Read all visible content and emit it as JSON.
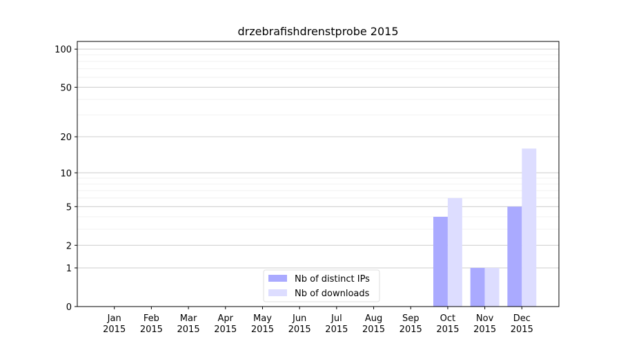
{
  "chart_data": {
    "type": "bar",
    "title": "drzebrafishdrenstprobe 2015",
    "categories": [
      "Jan 2015",
      "Feb 2015",
      "Mar 2015",
      "Apr 2015",
      "May 2015",
      "Jun 2015",
      "Jul 2015",
      "Aug 2015",
      "Sep 2015",
      "Oct 2015",
      "Nov 2015",
      "Dec 2015"
    ],
    "series": [
      {
        "name": "Nb of distinct IPs",
        "color": "#aaaaff",
        "values": [
          0,
          0,
          0,
          0,
          0,
          0,
          0,
          0,
          0,
          4,
          1,
          5
        ]
      },
      {
        "name": "Nb of downloads",
        "color": "#ddddff",
        "values": [
          0,
          0,
          0,
          0,
          0,
          0,
          0,
          0,
          0,
          6,
          1,
          16
        ]
      }
    ],
    "yscale": "log1p",
    "ylim": [
      0,
      115
    ],
    "yticks": [
      0,
      1,
      2,
      5,
      10,
      20,
      50,
      100
    ],
    "minor_yticks": [
      3,
      4,
      6,
      7,
      8,
      9,
      30,
      40,
      60,
      70,
      80,
      90
    ],
    "grid": true,
    "legend": "lower center"
  }
}
